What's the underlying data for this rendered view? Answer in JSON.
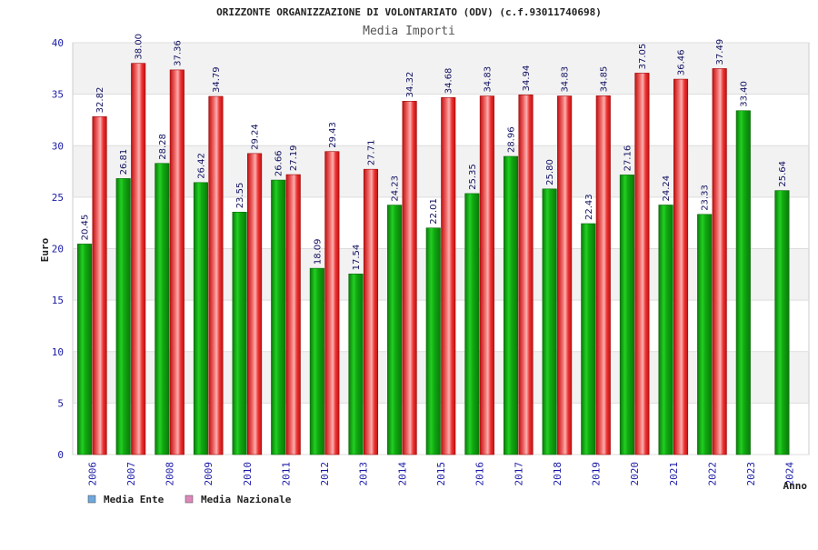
{
  "chart_data": {
    "type": "bar",
    "title": "ORIZZONTE ORGANIZZAZIONE DI VOLONTARIATO (ODV) (c.f.93011740698)",
    "subtitle": "Media Importi",
    "xlabel": "Anno",
    "ylabel": "Euro",
    "ylim": [
      0,
      40
    ],
    "yticks": [
      0,
      5,
      10,
      15,
      20,
      25,
      30,
      35,
      40
    ],
    "grid": true,
    "legend_position": "bottom-left",
    "categories": [
      "2006",
      "2007",
      "2008",
      "2009",
      "2010",
      "2011",
      "2012",
      "2013",
      "2014",
      "2015",
      "2016",
      "2017",
      "2018",
      "2019",
      "2020",
      "2021",
      "2022",
      "2023",
      "2024"
    ],
    "series": [
      {
        "name": "Media Ente",
        "color": "#14b814",
        "legend_color": "#6fa8dc",
        "values": [
          20.45,
          26.81,
          28.28,
          26.42,
          23.55,
          26.66,
          18.09,
          17.54,
          24.23,
          22.01,
          25.35,
          28.96,
          25.8,
          22.43,
          27.16,
          24.24,
          23.33,
          33.4,
          25.64
        ],
        "labels": [
          "20.45",
          "26.81",
          "28.28",
          "26.42",
          "23.55",
          "26.66",
          "18.09",
          "17.54",
          "24.23",
          "22.01",
          "25.35",
          "28.96",
          "25.80",
          "22.43",
          "27.16",
          "24.24",
          "23.33",
          "33.40",
          "25.64"
        ]
      },
      {
        "name": "Media Nazionale",
        "color": "#ee2222",
        "legend_color": "#dd88bb",
        "values": [
          32.82,
          38.0,
          37.36,
          34.79,
          29.24,
          27.19,
          29.43,
          27.71,
          34.32,
          34.68,
          34.83,
          34.94,
          34.83,
          34.85,
          37.05,
          36.46,
          37.49,
          null,
          null
        ],
        "labels": [
          "32.82",
          "38.00",
          "37.36",
          "34.79",
          "29.24",
          "27.19",
          "29.43",
          "27.71",
          "34.32",
          "34.68",
          "34.83",
          "34.94",
          "34.83",
          "34.85",
          "37.05",
          "36.46",
          "37.49",
          null,
          null
        ]
      }
    ]
  }
}
